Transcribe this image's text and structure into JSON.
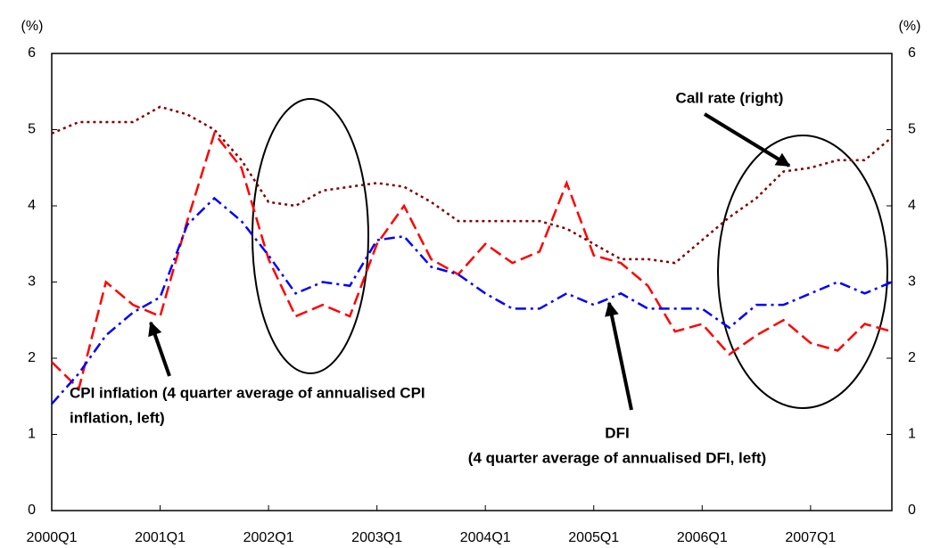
{
  "chart_data": {
    "type": "line",
    "y_label": "(%)",
    "y2_label": "(%)",
    "categories": [
      "2000Q1",
      null,
      null,
      null,
      "2001Q1",
      null,
      null,
      null,
      "2002Q1",
      null,
      null,
      null,
      "2003Q1",
      null,
      null,
      null,
      "2004Q1",
      null,
      null,
      null,
      "2005Q1",
      null,
      null,
      null,
      "2006Q1",
      null,
      null,
      null,
      "2007Q1",
      null,
      null,
      null
    ],
    "ylim": [
      0,
      6
    ],
    "yticks": [
      0,
      1,
      2,
      3,
      4,
      5,
      6
    ],
    "y2lim": [
      0,
      6
    ],
    "y2ticks": [
      0,
      1,
      2,
      3,
      4,
      5,
      6
    ],
    "series": [
      {
        "name": "CPI inflation",
        "color": "#ff0000",
        "dash": "dashed",
        "values": [
          1.95,
          1.6,
          3.0,
          2.7,
          2.55,
          3.8,
          4.95,
          4.5,
          3.3,
          2.55,
          2.7,
          2.55,
          3.5,
          4.0,
          3.3,
          3.1,
          3.5,
          3.25,
          3.4,
          4.3,
          3.35,
          3.25,
          2.95,
          2.35,
          2.45,
          2.05,
          2.3,
          2.5,
          2.2,
          2.1,
          2.45,
          2.35
        ]
      },
      {
        "name": "DFI",
        "color": "#0000ff",
        "dash": "dashdot",
        "values": [
          1.4,
          1.8,
          2.3,
          2.6,
          2.8,
          3.75,
          4.1,
          3.8,
          3.35,
          2.85,
          3.0,
          2.95,
          3.55,
          3.6,
          3.2,
          3.1,
          2.85,
          2.65,
          2.65,
          2.85,
          2.7,
          2.85,
          2.65,
          2.65,
          2.65,
          2.4,
          2.7,
          2.7,
          2.85,
          3.0,
          2.85,
          3.0
        ]
      },
      {
        "name": "Call rate",
        "color": "#800000",
        "dash": "dotted",
        "axis": "y2",
        "values": [
          4.95,
          5.1,
          5.1,
          5.1,
          5.3,
          5.2,
          5.0,
          4.6,
          4.05,
          4.0,
          4.2,
          4.25,
          4.3,
          4.25,
          4.05,
          3.8,
          3.8,
          3.8,
          3.8,
          3.7,
          3.5,
          3.3,
          3.3,
          3.25,
          3.55,
          3.85,
          4.1,
          4.45,
          4.5,
          4.6,
          4.6,
          4.9
        ]
      }
    ],
    "annotations": [
      [
        "CPI inflation (4 quarter average of annualised CPI",
        "inflation, left)"
      ],
      [
        "DFI",
        "(4 quarter average of annualised DFI, left)"
      ],
      [
        "Call rate (right)"
      ]
    ]
  }
}
